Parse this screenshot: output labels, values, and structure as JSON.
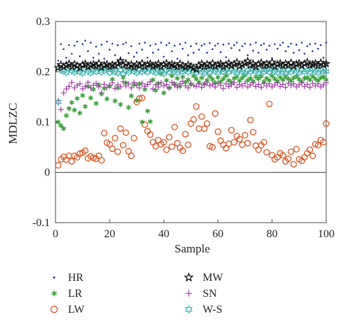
{
  "chart_data": {
    "type": "scatter",
    "xlabel": "Sample",
    "ylabel": "MDLZC",
    "xlim": [
      0,
      100
    ],
    "ylim": [
      -0.1,
      0.3
    ],
    "xticks": [
      0,
      20,
      40,
      60,
      80,
      100
    ],
    "xtick_labels": [
      "0",
      "20",
      "40",
      "60",
      "80",
      "100"
    ],
    "yticks": [
      -0.1,
      0,
      0.1,
      0.2,
      0.3
    ],
    "ytick_labels": [
      "-0.1",
      "0",
      "0.1",
      "0.2",
      "0.3"
    ],
    "grid": false,
    "legend_position": "bottom",
    "series": [
      {
        "name": "HR",
        "marker": "dot",
        "color": "#1f3a93",
        "x": [
          1,
          2,
          3,
          4,
          5,
          6,
          7,
          8,
          9,
          10,
          11,
          12,
          13,
          14,
          15,
          16,
          17,
          18,
          19,
          20,
          21,
          22,
          23,
          24,
          25,
          26,
          27,
          28,
          29,
          30,
          31,
          32,
          33,
          34,
          35,
          36,
          37,
          38,
          39,
          40,
          41,
          42,
          43,
          44,
          45,
          46,
          47,
          48,
          49,
          50,
          51,
          52,
          53,
          54,
          55,
          56,
          57,
          58,
          59,
          60,
          61,
          62,
          63,
          64,
          65,
          66,
          67,
          68,
          69,
          70,
          71,
          72,
          73,
          74,
          75,
          76,
          77,
          78,
          79,
          80,
          81,
          82,
          83,
          84,
          85,
          86,
          87,
          88,
          89,
          90,
          91,
          92,
          93,
          94,
          95,
          96,
          97,
          98,
          99,
          100
        ],
        "y": [
          0.222,
          0.255,
          0.245,
          0.228,
          0.253,
          0.236,
          0.252,
          0.26,
          0.231,
          0.255,
          0.262,
          0.241,
          0.258,
          0.228,
          0.25,
          0.236,
          0.254,
          0.226,
          0.26,
          0.244,
          0.256,
          0.233,
          0.253,
          0.224,
          0.255,
          0.258,
          0.237,
          0.251,
          0.23,
          0.238,
          0.256,
          0.244,
          0.258,
          0.228,
          0.252,
          0.238,
          0.255,
          0.244,
          0.258,
          0.23,
          0.253,
          0.257,
          0.241,
          0.252,
          0.226,
          0.255,
          0.246,
          0.258,
          0.233,
          0.251,
          0.238,
          0.256,
          0.244,
          0.252,
          0.255,
          0.238,
          0.257,
          0.245,
          0.252,
          0.256,
          0.239,
          0.254,
          0.229,
          0.256,
          0.247,
          0.253,
          0.258,
          0.243,
          0.251,
          0.256,
          0.233,
          0.254,
          0.242,
          0.258,
          0.238,
          0.253,
          0.256,
          0.244,
          0.252,
          0.227,
          0.255,
          0.246,
          0.253,
          0.258,
          0.241,
          0.25,
          0.256,
          0.238,
          0.254,
          0.243,
          0.258,
          0.236,
          0.251,
          0.255,
          0.241,
          0.256,
          0.246,
          0.253,
          0.228,
          0.258
        ]
      },
      {
        "name": "LR",
        "marker": "asterisk",
        "color": "#3aa13a",
        "x": [
          1,
          2,
          3,
          4,
          5,
          6,
          7,
          8,
          9,
          10,
          11,
          12,
          13,
          14,
          15,
          16,
          17,
          18,
          19,
          20,
          21,
          22,
          23,
          24,
          25,
          26,
          27,
          28,
          29,
          30,
          31,
          32,
          33,
          34,
          35,
          36,
          37,
          38,
          39,
          40,
          41,
          42,
          43,
          44,
          45,
          46,
          47,
          48,
          49,
          50,
          51,
          52,
          53,
          54,
          55,
          56,
          57,
          58,
          59,
          60,
          61,
          62,
          63,
          64,
          65,
          66,
          67,
          68,
          69,
          70,
          71,
          72,
          73,
          74,
          75,
          76,
          77,
          78,
          79,
          80,
          81,
          82,
          83,
          84,
          85,
          86,
          87,
          88,
          89,
          90,
          91,
          92,
          93,
          94,
          95,
          96,
          97,
          98,
          99,
          100
        ],
        "y": [
          0.1,
          0.093,
          0.087,
          0.113,
          0.127,
          0.139,
          0.124,
          0.147,
          0.118,
          0.153,
          0.131,
          0.171,
          0.148,
          0.165,
          0.137,
          0.174,
          0.156,
          0.167,
          0.146,
          0.171,
          0.185,
          0.142,
          0.168,
          0.135,
          0.189,
          0.178,
          0.129,
          0.152,
          0.174,
          0.143,
          0.176,
          0.1,
          0.165,
          0.122,
          0.101,
          0.184,
          0.163,
          0.177,
          0.196,
          0.158,
          0.183,
          0.168,
          0.192,
          0.176,
          0.187,
          0.171,
          0.19,
          0.179,
          0.184,
          0.175,
          0.192,
          0.186,
          0.179,
          0.188,
          0.176,
          0.183,
          0.191,
          0.185,
          0.178,
          0.189,
          0.18,
          0.186,
          0.192,
          0.183,
          0.179,
          0.187,
          0.19,
          0.182,
          0.188,
          0.193,
          0.183,
          0.187,
          0.181,
          0.19,
          0.186,
          0.191,
          0.18,
          0.187,
          0.183,
          0.192,
          0.186,
          0.181,
          0.189,
          0.184,
          0.19,
          0.186,
          0.182,
          0.188,
          0.191,
          0.185,
          0.18,
          0.187,
          0.189,
          0.184,
          0.191,
          0.186,
          0.182,
          0.188,
          0.19,
          0.184
        ]
      },
      {
        "name": "LW",
        "marker": "circle",
        "color": "#d9531e",
        "x": [
          1,
          2,
          3,
          4,
          5,
          6,
          7,
          8,
          9,
          10,
          11,
          12,
          13,
          14,
          15,
          16,
          17,
          18,
          19,
          20,
          21,
          22,
          23,
          24,
          25,
          26,
          27,
          28,
          29,
          30,
          31,
          32,
          33,
          34,
          35,
          36,
          37,
          38,
          39,
          40,
          41,
          42,
          43,
          44,
          45,
          46,
          47,
          48,
          49,
          50,
          51,
          52,
          53,
          54,
          55,
          56,
          57,
          58,
          59,
          60,
          61,
          62,
          63,
          64,
          65,
          66,
          67,
          68,
          69,
          70,
          71,
          72,
          73,
          74,
          75,
          76,
          77,
          78,
          79,
          80,
          81,
          82,
          83,
          84,
          85,
          86,
          87,
          88,
          89,
          90,
          91,
          92,
          93,
          94,
          95,
          96,
          97,
          98,
          99,
          100
        ],
        "y": [
          0.014,
          0.026,
          0.031,
          0.025,
          0.033,
          0.022,
          0.033,
          0.03,
          0.037,
          0.039,
          0.043,
          0.028,
          0.032,
          0.029,
          0.027,
          0.033,
          0.024,
          0.078,
          0.059,
          0.056,
          0.047,
          0.068,
          0.041,
          0.087,
          0.054,
          0.079,
          0.042,
          0.033,
          0.068,
          0.14,
          0.147,
          0.148,
          0.095,
          0.082,
          0.075,
          0.06,
          0.052,
          0.064,
          0.056,
          0.06,
          0.045,
          0.07,
          0.051,
          0.09,
          0.058,
          0.049,
          0.043,
          0.076,
          0.055,
          0.097,
          0.105,
          0.131,
          0.087,
          0.111,
          0.087,
          0.097,
          0.052,
          0.05,
          0.117,
          0.081,
          0.063,
          0.055,
          0.048,
          0.057,
          0.084,
          0.06,
          0.072,
          0.066,
          0.055,
          0.074,
          0.058,
          0.104,
          0.08,
          0.053,
          0.045,
          0.054,
          0.06,
          0.04,
          0.136,
          0.034,
          0.026,
          0.03,
          0.038,
          0.034,
          0.022,
          0.027,
          0.041,
          0.016,
          0.046,
          0.026,
          0.023,
          0.03,
          0.038,
          0.045,
          0.033,
          0.056,
          0.054,
          0.064,
          0.06,
          0.097
        ]
      },
      {
        "name": "MW",
        "marker": "star",
        "color": "#111111",
        "x": [
          1,
          2,
          3,
          4,
          5,
          6,
          7,
          8,
          9,
          10,
          11,
          12,
          13,
          14,
          15,
          16,
          17,
          18,
          19,
          20,
          21,
          22,
          23,
          24,
          25,
          26,
          27,
          28,
          29,
          30,
          31,
          32,
          33,
          34,
          35,
          36,
          37,
          38,
          39,
          40,
          41,
          42,
          43,
          44,
          45,
          46,
          47,
          48,
          49,
          50,
          51,
          52,
          53,
          54,
          55,
          56,
          57,
          58,
          59,
          60,
          61,
          62,
          63,
          64,
          65,
          66,
          67,
          68,
          69,
          70,
          71,
          72,
          73,
          74,
          75,
          76,
          77,
          78,
          79,
          80,
          81,
          82,
          83,
          84,
          85,
          86,
          87,
          88,
          89,
          90,
          91,
          92,
          93,
          94,
          95,
          96,
          97,
          98,
          99,
          100
        ],
        "y": [
          0.208,
          0.214,
          0.21,
          0.213,
          0.216,
          0.21,
          0.215,
          0.212,
          0.208,
          0.214,
          0.216,
          0.21,
          0.213,
          0.215,
          0.211,
          0.217,
          0.209,
          0.213,
          0.215,
          0.21,
          0.214,
          0.212,
          0.216,
          0.222,
          0.213,
          0.217,
          0.211,
          0.214,
          0.209,
          0.215,
          0.212,
          0.217,
          0.21,
          0.214,
          0.216,
          0.211,
          0.213,
          0.216,
          0.21,
          0.214,
          0.217,
          0.211,
          0.215,
          0.213,
          0.21,
          0.216,
          0.212,
          0.209,
          0.214,
          0.211,
          0.208,
          0.205,
          0.213,
          0.216,
          0.21,
          0.215,
          0.212,
          0.217,
          0.211,
          0.214,
          0.216,
          0.21,
          0.214,
          0.217,
          0.212,
          0.215,
          0.219,
          0.211,
          0.214,
          0.217,
          0.221,
          0.213,
          0.216,
          0.21,
          0.215,
          0.218,
          0.212,
          0.216,
          0.213,
          0.219,
          0.211,
          0.215,
          0.217,
          0.212,
          0.216,
          0.213,
          0.218,
          0.211,
          0.215,
          0.217,
          0.212,
          0.216,
          0.219,
          0.213,
          0.215,
          0.217,
          0.212,
          0.218,
          0.214,
          0.216
        ]
      },
      {
        "name": "SN",
        "marker": "plus",
        "color": "#a03ca8",
        "x": [
          1,
          2,
          3,
          4,
          5,
          6,
          7,
          8,
          9,
          10,
          11,
          12,
          13,
          14,
          15,
          16,
          17,
          18,
          19,
          20,
          21,
          22,
          23,
          24,
          25,
          26,
          27,
          28,
          29,
          30,
          31,
          32,
          33,
          34,
          35,
          36,
          37,
          38,
          39,
          40,
          41,
          42,
          43,
          44,
          45,
          46,
          47,
          48,
          49,
          50,
          51,
          52,
          53,
          54,
          55,
          56,
          57,
          58,
          59,
          60,
          61,
          62,
          63,
          64,
          65,
          66,
          67,
          68,
          69,
          70,
          71,
          72,
          73,
          74,
          75,
          76,
          77,
          78,
          79,
          80,
          81,
          82,
          83,
          84,
          85,
          86,
          87,
          88,
          89,
          90,
          91,
          92,
          93,
          94,
          95,
          96,
          97,
          98,
          99,
          100
        ],
        "y": [
          0.143,
          0.125,
          0.158,
          0.166,
          0.171,
          0.179,
          0.168,
          0.173,
          0.176,
          0.166,
          0.171,
          0.179,
          0.168,
          0.173,
          0.177,
          0.17,
          0.158,
          0.175,
          0.169,
          0.173,
          0.178,
          0.167,
          0.174,
          0.17,
          0.18,
          0.172,
          0.176,
          0.168,
          0.179,
          0.173,
          0.168,
          0.177,
          0.171,
          0.175,
          0.18,
          0.166,
          0.174,
          0.17,
          0.178,
          0.172,
          0.175,
          0.168,
          0.179,
          0.173,
          0.17,
          0.176,
          0.181,
          0.172,
          0.168,
          0.177,
          0.173,
          0.171,
          0.176,
          0.169,
          0.174,
          0.178,
          0.172,
          0.175,
          0.17,
          0.177,
          0.173,
          0.167,
          0.176,
          0.171,
          0.174,
          0.178,
          0.169,
          0.175,
          0.172,
          0.177,
          0.17,
          0.174,
          0.178,
          0.171,
          0.175,
          0.169,
          0.177,
          0.172,
          0.176,
          0.17,
          0.174,
          0.178,
          0.171,
          0.175,
          0.169,
          0.177,
          0.173,
          0.176,
          0.17,
          0.174,
          0.178,
          0.171,
          0.175,
          0.169,
          0.177,
          0.172,
          0.176,
          0.17,
          0.174,
          0.178
        ]
      },
      {
        "name": "W-S",
        "marker": "hexstar",
        "color": "#3fb1b0",
        "x": [
          1,
          2,
          3,
          4,
          5,
          6,
          7,
          8,
          9,
          10,
          11,
          12,
          13,
          14,
          15,
          16,
          17,
          18,
          19,
          20,
          21,
          22,
          23,
          24,
          25,
          26,
          27,
          28,
          29,
          30,
          31,
          32,
          33,
          34,
          35,
          36,
          37,
          38,
          39,
          40,
          41,
          42,
          43,
          44,
          45,
          46,
          47,
          48,
          49,
          50,
          51,
          52,
          53,
          54,
          55,
          56,
          57,
          58,
          59,
          60,
          61,
          62,
          63,
          64,
          65,
          66,
          67,
          68,
          69,
          70,
          71,
          72,
          73,
          74,
          75,
          76,
          77,
          78,
          79,
          80,
          81,
          82,
          83,
          84,
          85,
          86,
          87,
          88,
          89,
          90,
          91,
          92,
          93,
          94,
          95,
          96,
          97,
          98,
          99,
          100
        ],
        "y": [
          0.14,
          0.203,
          0.201,
          0.198,
          0.206,
          0.202,
          0.199,
          0.204,
          0.2,
          0.197,
          0.205,
          0.201,
          0.198,
          0.203,
          0.2,
          0.206,
          0.199,
          0.202,
          0.205,
          0.198,
          0.203,
          0.2,
          0.197,
          0.204,
          0.196,
          0.202,
          0.199,
          0.205,
          0.201,
          0.198,
          0.204,
          0.2,
          0.203,
          0.199,
          0.206,
          0.201,
          0.198,
          0.204,
          0.2,
          0.196,
          0.203,
          0.199,
          0.205,
          0.201,
          0.198,
          0.204,
          0.2,
          0.203,
          0.199,
          0.206,
          0.201,
          0.198,
          0.204,
          0.2,
          0.197,
          0.203,
          0.199,
          0.205,
          0.201,
          0.198,
          0.204,
          0.2,
          0.203,
          0.199,
          0.205,
          0.201,
          0.198,
          0.204,
          0.2,
          0.197,
          0.203,
          0.199,
          0.205,
          0.201,
          0.198,
          0.204,
          0.2,
          0.203,
          0.199,
          0.206,
          0.201,
          0.198,
          0.204,
          0.2,
          0.197,
          0.203,
          0.199,
          0.205,
          0.201,
          0.198,
          0.204,
          0.2,
          0.203,
          0.199,
          0.205,
          0.201,
          0.198,
          0.204,
          0.2,
          0.201
        ]
      }
    ]
  }
}
